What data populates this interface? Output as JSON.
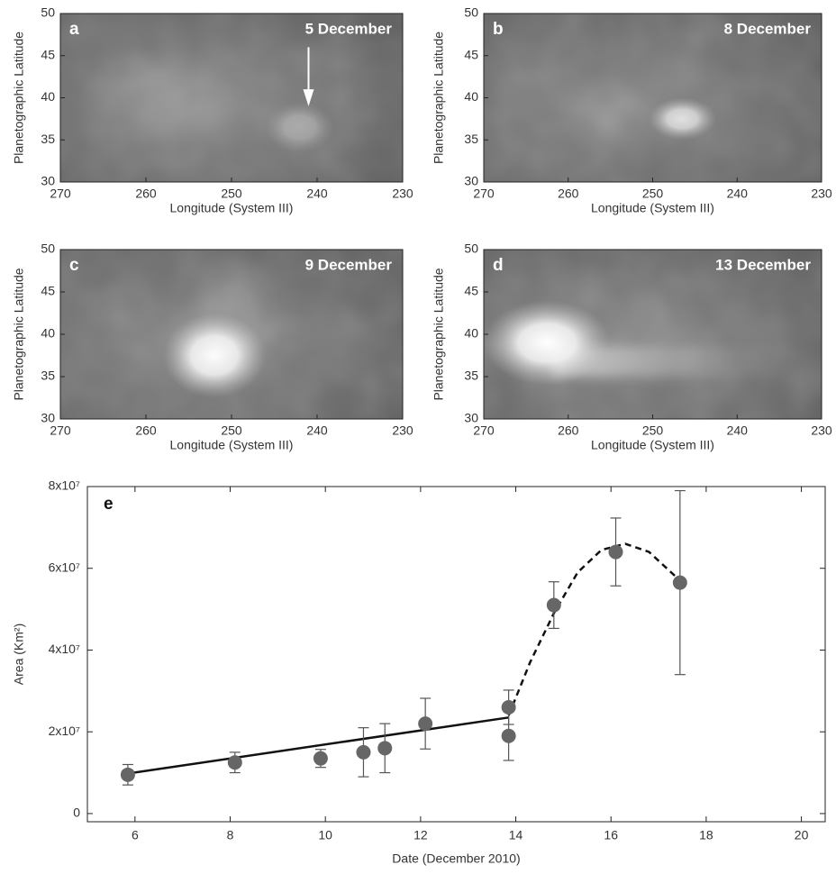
{
  "chart_data": [
    {
      "type": "image",
      "panel": "a",
      "title": "5 December",
      "xlabel": "Longitude (System III)",
      "ylabel": "Planetographic Latitude",
      "xlim": [
        270,
        230
      ],
      "xticks": [
        270,
        260,
        250,
        240,
        230
      ],
      "ylim": [
        30,
        50
      ],
      "yticks": [
        30,
        35,
        40,
        45,
        50
      ]
    },
    {
      "type": "image",
      "panel": "b",
      "title": "8 December",
      "xlabel": "Longitude (System III)",
      "ylabel": "Planetographic Latitude",
      "xlim": [
        270,
        230
      ],
      "xticks": [
        270,
        260,
        250,
        240,
        230
      ],
      "ylim": [
        30,
        50
      ],
      "yticks": [
        30,
        35,
        40,
        45,
        50
      ]
    },
    {
      "type": "image",
      "panel": "c",
      "title": "9 December",
      "xlabel": "Longitude (System III)",
      "ylabel": "Planetographic Latitude",
      "xlim": [
        270,
        230
      ],
      "xticks": [
        270,
        260,
        250,
        240,
        230
      ],
      "ylim": [
        30,
        50
      ],
      "yticks": [
        30,
        35,
        40,
        45,
        50
      ]
    },
    {
      "type": "image",
      "panel": "d",
      "title": "13 December",
      "xlabel": "Longitude (System III)",
      "ylabel": "Planetographic Latitude",
      "xlim": [
        270,
        230
      ],
      "xticks": [
        270,
        260,
        250,
        240,
        230
      ],
      "ylim": [
        30,
        50
      ],
      "yticks": [
        30,
        35,
        40,
        45,
        50
      ]
    },
    {
      "type": "scatter",
      "panel": "e",
      "xlabel": "Date (December 2010)",
      "ylabel": "Area (Km²)",
      "xlim": [
        5,
        20.5
      ],
      "xticks": [
        6,
        8,
        10,
        12,
        14,
        16,
        18,
        20
      ],
      "ylim": [
        -2000000,
        80000000
      ],
      "yticks": [
        0,
        {
          "value": 20000000,
          "label": "2x10⁷"
        },
        {
          "value": 40000000,
          "label": "4x10⁷"
        },
        {
          "value": 60000000,
          "label": "6x10⁷"
        },
        {
          "value": 80000000,
          "label": "8x10⁷"
        }
      ],
      "x": [
        5.85,
        8.1,
        9.9,
        10.8,
        11.25,
        12.1,
        13.85,
        13.85,
        14.8,
        16.1,
        17.45
      ],
      "values": [
        9500000,
        12500000,
        13500000,
        15000000,
        16000000,
        22000000,
        26000000,
        19000000,
        51000000,
        64000000,
        56500000
      ],
      "errors": [
        2500000,
        2500000,
        2200000,
        6000000,
        6000000,
        6200000,
        4200000,
        6000000,
        5700000,
        8300000,
        22500000
      ],
      "color": "#666666",
      "fits": [
        {
          "style": "solid",
          "color": "#111111",
          "x": [
            5.85,
            13.85
          ],
          "values": [
            9800000,
            23500000
          ]
        },
        {
          "style": "dashed",
          "color": "#111111",
          "x": [
            13.85,
            14.3,
            14.8,
            15.3,
            15.8,
            16.3,
            16.8,
            17.45
          ],
          "values": [
            24000000,
            37000000,
            49000000,
            59000000,
            64500000,
            66000000,
            64000000,
            57000000
          ]
        }
      ]
    }
  ]
}
